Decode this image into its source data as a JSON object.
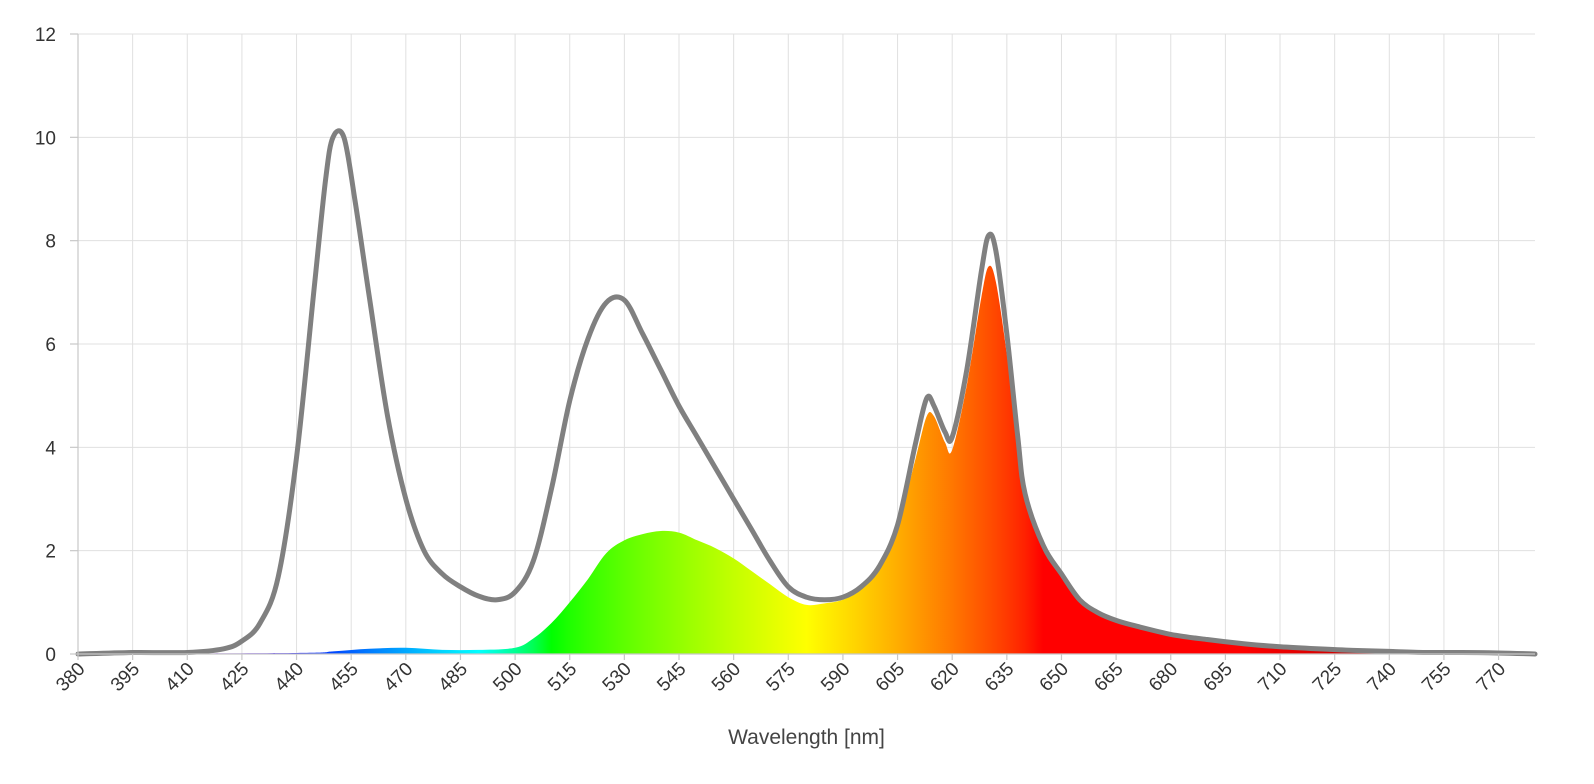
{
  "chart_data": {
    "type": "area",
    "xlabel": "Wavelength [nm]",
    "ylabel": "",
    "xlim": [
      380,
      780
    ],
    "ylim": [
      0,
      12
    ],
    "x_ticks": [
      380,
      395,
      410,
      425,
      440,
      455,
      470,
      485,
      500,
      515,
      530,
      545,
      560,
      575,
      590,
      605,
      620,
      635,
      650,
      665,
      680,
      695,
      710,
      725,
      740,
      755,
      770
    ],
    "y_ticks": [
      0,
      2,
      4,
      6,
      8,
      10,
      12
    ],
    "grid": true,
    "series": [
      {
        "style": "gray outline",
        "color": "#808080",
        "points": [
          [
            380,
            0.0
          ],
          [
            395,
            0.03
          ],
          [
            410,
            0.03
          ],
          [
            420,
            0.1
          ],
          [
            425,
            0.25
          ],
          [
            430,
            0.6
          ],
          [
            435,
            1.5
          ],
          [
            440,
            3.8
          ],
          [
            445,
            7.2
          ],
          [
            448,
            9.2
          ],
          [
            450,
            10.0
          ],
          [
            453,
            10.0
          ],
          [
            456,
            8.8
          ],
          [
            460,
            6.9
          ],
          [
            465,
            4.6
          ],
          [
            470,
            3.0
          ],
          [
            475,
            2.0
          ],
          [
            480,
            1.55
          ],
          [
            485,
            1.3
          ],
          [
            490,
            1.12
          ],
          [
            495,
            1.05
          ],
          [
            500,
            1.2
          ],
          [
            505,
            1.8
          ],
          [
            510,
            3.2
          ],
          [
            515,
            4.9
          ],
          [
            520,
            6.1
          ],
          [
            525,
            6.8
          ],
          [
            530,
            6.85
          ],
          [
            535,
            6.2
          ],
          [
            540,
            5.5
          ],
          [
            545,
            4.8
          ],
          [
            550,
            4.2
          ],
          [
            555,
            3.6
          ],
          [
            560,
            3.0
          ],
          [
            565,
            2.4
          ],
          [
            570,
            1.8
          ],
          [
            575,
            1.3
          ],
          [
            580,
            1.1
          ],
          [
            585,
            1.05
          ],
          [
            590,
            1.1
          ],
          [
            595,
            1.3
          ],
          [
            600,
            1.7
          ],
          [
            605,
            2.5
          ],
          [
            610,
            4.1
          ],
          [
            613,
            4.95
          ],
          [
            615,
            4.8
          ],
          [
            618,
            4.3
          ],
          [
            620,
            4.2
          ],
          [
            624,
            5.5
          ],
          [
            628,
            7.4
          ],
          [
            630,
            8.1
          ],
          [
            632,
            7.8
          ],
          [
            635,
            6.2
          ],
          [
            638,
            4.2
          ],
          [
            640,
            3.1
          ],
          [
            645,
            2.1
          ],
          [
            650,
            1.55
          ],
          [
            655,
            1.05
          ],
          [
            660,
            0.8
          ],
          [
            665,
            0.65
          ],
          [
            670,
            0.55
          ],
          [
            680,
            0.38
          ],
          [
            690,
            0.28
          ],
          [
            700,
            0.2
          ],
          [
            710,
            0.14
          ],
          [
            720,
            0.1
          ],
          [
            730,
            0.07
          ],
          [
            740,
            0.05
          ],
          [
            750,
            0.03
          ],
          [
            760,
            0.03
          ],
          [
            770,
            0.02
          ],
          [
            780,
            0.0
          ]
        ]
      },
      {
        "style": "spectral color fill",
        "points": [
          [
            380,
            0.0
          ],
          [
            440,
            0.02
          ],
          [
            450,
            0.05
          ],
          [
            460,
            0.1
          ],
          [
            470,
            0.12
          ],
          [
            480,
            0.08
          ],
          [
            490,
            0.08
          ],
          [
            500,
            0.12
          ],
          [
            505,
            0.3
          ],
          [
            510,
            0.6
          ],
          [
            515,
            1.0
          ],
          [
            520,
            1.45
          ],
          [
            525,
            1.95
          ],
          [
            530,
            2.2
          ],
          [
            535,
            2.32
          ],
          [
            540,
            2.38
          ],
          [
            545,
            2.35
          ],
          [
            550,
            2.2
          ],
          [
            555,
            2.05
          ],
          [
            560,
            1.85
          ],
          [
            565,
            1.6
          ],
          [
            570,
            1.35
          ],
          [
            575,
            1.1
          ],
          [
            580,
            0.95
          ],
          [
            585,
            0.98
          ],
          [
            590,
            1.05
          ],
          [
            595,
            1.25
          ],
          [
            600,
            1.7
          ],
          [
            605,
            2.45
          ],
          [
            610,
            3.8
          ],
          [
            613,
            4.6
          ],
          [
            615,
            4.6
          ],
          [
            618,
            4.1
          ],
          [
            620,
            3.95
          ],
          [
            624,
            5.2
          ],
          [
            628,
            6.9
          ],
          [
            630,
            7.5
          ],
          [
            632,
            7.2
          ],
          [
            635,
            5.8
          ],
          [
            638,
            4.0
          ],
          [
            640,
            3.0
          ],
          [
            645,
            2.05
          ],
          [
            650,
            1.5
          ],
          [
            655,
            1.02
          ],
          [
            660,
            0.78
          ],
          [
            665,
            0.63
          ],
          [
            670,
            0.53
          ],
          [
            680,
            0.37
          ],
          [
            690,
            0.27
          ],
          [
            700,
            0.19
          ],
          [
            710,
            0.13
          ],
          [
            720,
            0.09
          ],
          [
            730,
            0.07
          ],
          [
            740,
            0.05
          ],
          [
            750,
            0.03
          ],
          [
            760,
            0.03
          ],
          [
            770,
            0.02
          ],
          [
            780,
            0.0
          ]
        ]
      }
    ]
  }
}
